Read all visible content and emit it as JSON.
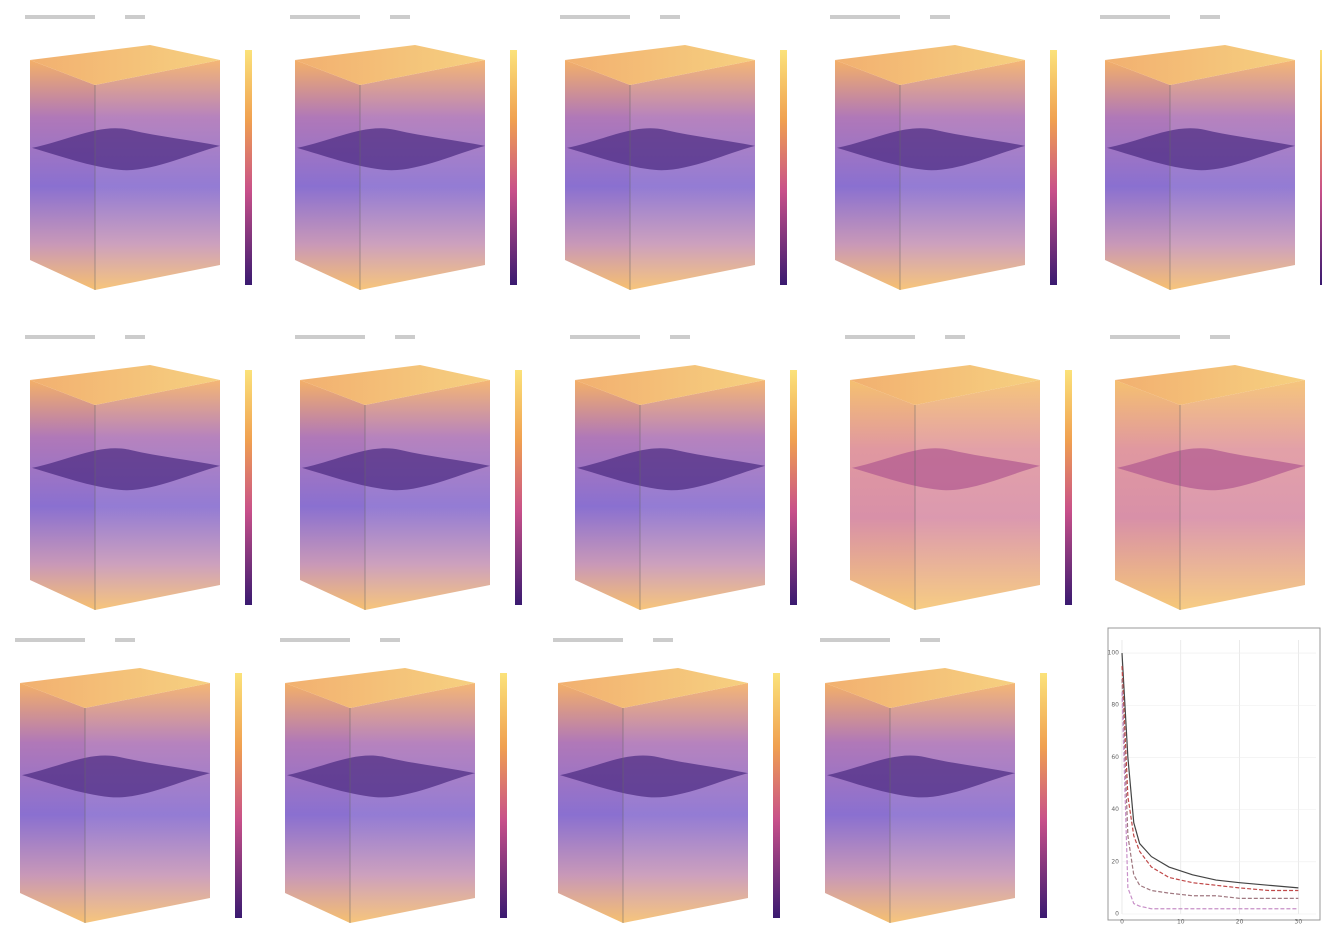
{
  "chart_data": {
    "type": "line",
    "x": [
      0,
      1,
      2,
      3,
      5,
      8,
      12,
      16,
      20,
      25,
      30
    ],
    "series": [
      {
        "color": "#444444",
        "values": [
          100,
          60,
          35,
          27,
          22,
          18,
          15,
          13,
          12,
          11,
          10
        ]
      },
      {
        "color": "#c04848",
        "values": [
          95,
          45,
          30,
          24,
          18,
          14,
          12,
          11,
          10,
          9,
          9
        ]
      },
      {
        "color": "#a07880",
        "values": [
          90,
          30,
          15,
          11,
          9,
          8,
          7,
          7,
          6,
          6,
          6
        ]
      },
      {
        "color": "#c890c8",
        "values": [
          85,
          10,
          4,
          3,
          2,
          2,
          2,
          2,
          2,
          2,
          2
        ]
      }
    ],
    "xlim": [
      0,
      33
    ],
    "ylim": [
      0,
      105
    ],
    "xticks": [
      0,
      10,
      20,
      30
    ],
    "yticks": [
      0,
      20,
      40,
      60,
      80,
      100
    ],
    "grid": true
  }
}
